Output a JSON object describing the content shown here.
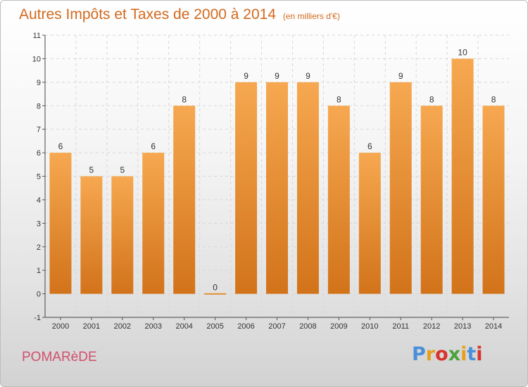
{
  "header": {
    "title": "Autres Impôts et Taxes de 2000 à 2014",
    "unit": "(en milliers d'€)"
  },
  "footer": {
    "commune": "POMARèDE",
    "brand": "Proxiti",
    "brand_colors": [
      "#4a90d9",
      "#e8a01c",
      "#d9342b",
      "#4aa33c",
      "#e8a01c",
      "#4a90d9",
      "#d9342b"
    ]
  },
  "chart_data": {
    "type": "bar",
    "title": "Autres Impôts et Taxes de 2000 à 2014",
    "subtitle": "(en milliers d'€)",
    "xlabel": "",
    "ylabel": "",
    "categories": [
      "2000",
      "2001",
      "2002",
      "2003",
      "2004",
      "2005",
      "2006",
      "2007",
      "2008",
      "2009",
      "2010",
      "2011",
      "2012",
      "2013",
      "2014"
    ],
    "values": [
      6,
      5,
      5,
      6,
      8,
      0,
      9,
      9,
      9,
      8,
      6,
      9,
      8,
      10,
      8
    ],
    "data_labels": [
      "6",
      "5",
      "5",
      "6",
      "8",
      "0",
      "9",
      "9",
      "9",
      "8",
      "6",
      "9",
      "8",
      "10",
      "8"
    ],
    "y_ticks": [
      "-1",
      "0",
      "1",
      "2",
      "3",
      "4",
      "5",
      "6",
      "7",
      "8",
      "9",
      "10",
      "11"
    ],
    "ylim": [
      -1,
      11
    ],
    "grid": true,
    "bar_color": "#f0902f",
    "bar_color_light": "#f6a850",
    "bar_color_dark": "#d2731a"
  }
}
